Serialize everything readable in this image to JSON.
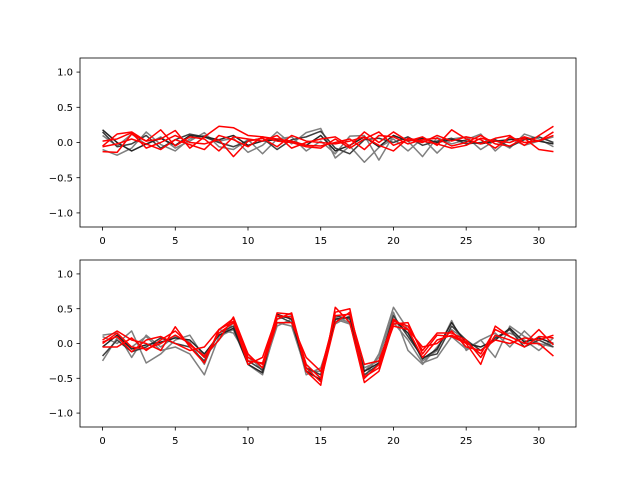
{
  "chart_data": [
    {
      "type": "line",
      "title": "",
      "xlabel": "",
      "ylabel": "",
      "xlim": [
        -1.55,
        32.55
      ],
      "ylim": [
        -1.2,
        1.2
      ],
      "x_ticks": [
        0,
        5,
        10,
        15,
        20,
        25,
        30
      ],
      "y_ticks": [
        -1.0,
        -0.5,
        0.0,
        0.5,
        1.0
      ],
      "y_tick_labels": [
        "−1.0",
        "−0.5",
        "0.0",
        "0.5",
        "1.0"
      ],
      "x": [
        0,
        1,
        2,
        3,
        4,
        5,
        6,
        7,
        8,
        9,
        10,
        11,
        12,
        13,
        14,
        15,
        16,
        17,
        18,
        19,
        20,
        21,
        22,
        23,
        24,
        25,
        26,
        27,
        28,
        29,
        30,
        31
      ],
      "series": [
        {
          "color": "#7f7f7f",
          "values": [
            -0.1,
            -0.18,
            -0.08,
            0.15,
            -0.03,
            -0.12,
            0.05,
            0.1,
            0.02,
            0.06,
            -0.14,
            -0.04,
            0.15,
            -0.02,
            0.14,
            0.2,
            -0.22,
            -0.05,
            -0.28,
            -0.07,
            0.05,
            -0.12,
            0.06,
            -0.15,
            0.05,
            0.08,
            -0.1,
            0.03,
            -0.08,
            0.12,
            0.05,
            -0.06
          ]
        },
        {
          "color": "#7f7f7f",
          "values": [
            0.1,
            -0.05,
            0.12,
            -0.03,
            0.08,
            -0.08,
            0.02,
            0.14,
            -0.06,
            -0.1,
            0.04,
            -0.16,
            0.05,
            0.08,
            -0.12,
            0.02,
            -0.16,
            0.09,
            0.1,
            -0.25,
            0.1,
            0.02,
            -0.2,
            0.07,
            -0.02,
            0.04,
            0.12,
            -0.12,
            0.06,
            -0.04,
            0.02,
            0.08
          ]
        },
        {
          "color": "#3f3f3f",
          "values": [
            0.15,
            -0.06,
            -0.02,
            0.1,
            -0.08,
            0.04,
            0.12,
            0.08,
            0.0,
            -0.06,
            0.02,
            0.06,
            -0.1,
            0.04,
            0.08,
            0.16,
            -0.08,
            -0.16,
            0.04,
            0.06,
            0.0,
            0.08,
            -0.04,
            0.02,
            0.06,
            -0.02,
            0.0,
            0.04,
            -0.06,
            0.04,
            0.08,
            0.0
          ]
        },
        {
          "color": "#262626",
          "values": [
            0.18,
            0.0,
            -0.12,
            -0.02,
            0.06,
            -0.04,
            0.1,
            0.08,
            0.04,
            0.1,
            -0.04,
            0.02,
            0.04,
            0.02,
            -0.04,
            0.1,
            -0.12,
            -0.04,
            0.08,
            -0.06,
            0.1,
            0.02,
            0.06,
            0.0,
            0.04,
            0.02,
            -0.02,
            0.02,
            0.04,
            0.06,
            0.02,
            -0.02
          ]
        },
        {
          "color": "#ff0000",
          "values": [
            -0.05,
            0.12,
            0.15,
            0.02,
            0.18,
            -0.05,
            0.08,
            0.05,
            -0.12,
            0.08,
            0.05,
            0.02,
            0.1,
            -0.08,
            0.0,
            0.05,
            0.08,
            -0.05,
            0.15,
            0.0,
            0.15,
            0.02,
            0.08,
            -0.04,
            0.18,
            0.05,
            -0.02,
            0.06,
            0.1,
            -0.04,
            0.1,
            0.23
          ]
        },
        {
          "color": "#ff0000",
          "values": [
            -0.13,
            -0.14,
            0.12,
            0.02,
            0.05,
            0.17,
            -0.08,
            0.08,
            0.23,
            0.21,
            0.1,
            0.08,
            0.05,
            0.02,
            -0.04,
            -0.05,
            0.0,
            0.05,
            -0.1,
            0.1,
            0.08,
            -0.02,
            0.04,
            0.06,
            -0.05,
            0.0,
            0.1,
            -0.02,
            -0.05,
            0.06,
            -0.1,
            -0.13
          ]
        },
        {
          "color": "#ff0000",
          "values": [
            -0.06,
            -0.02,
            0.05,
            -0.02,
            -0.1,
            0.04,
            -0.03,
            -0.1,
            0.1,
            0.04,
            -0.06,
            0.08,
            0.02,
            0.0,
            -0.06,
            -0.08,
            0.05,
            -0.08,
            0.05,
            0.15,
            -0.04,
            0.04,
            0.0,
            0.1,
            0.02,
            0.08,
            0.04,
            -0.08,
            0.08,
            0.0,
            0.02,
            0.15
          ]
        },
        {
          "color": "#ff0000",
          "values": [
            0.02,
            0.05,
            0.14,
            -0.08,
            0.0,
            0.1,
            0.0,
            -0.02,
            0.04,
            -0.2,
            0.02,
            0.06,
            -0.06,
            0.1,
            0.02,
            0.0,
            -0.02,
            0.02,
            0.08,
            -0.04,
            -0.12,
            0.06,
            0.02,
            -0.02,
            -0.08,
            -0.04,
            0.06,
            0.02,
            0.0,
            0.08,
            0.02,
            0.1
          ]
        }
      ]
    },
    {
      "type": "line",
      "title": "",
      "xlabel": "",
      "ylabel": "",
      "xlim": [
        -1.55,
        32.55
      ],
      "ylim": [
        -1.2,
        1.2
      ],
      "x_ticks": [
        0,
        5,
        10,
        15,
        20,
        25,
        30
      ],
      "y_ticks": [
        -1.0,
        -0.5,
        0.0,
        0.5,
        1.0
      ],
      "y_tick_labels": [
        "−1.0",
        "−0.5",
        "0.0",
        "0.5",
        "1.0"
      ],
      "x": [
        0,
        1,
        2,
        3,
        4,
        5,
        6,
        7,
        8,
        9,
        10,
        11,
        12,
        13,
        14,
        15,
        16,
        17,
        18,
        19,
        20,
        21,
        22,
        23,
        24,
        25,
        26,
        27,
        28,
        29,
        30,
        31
      ],
      "series": [
        {
          "color": "#7f7f7f",
          "values": [
            -0.25,
            0.08,
            -0.05,
            0.1,
            -0.1,
            -0.05,
            -0.15,
            -0.45,
            0.1,
            0.2,
            -0.3,
            -0.45,
            0.3,
            0.25,
            -0.4,
            -0.4,
            0.38,
            0.3,
            -0.5,
            -0.15,
            0.52,
            0.2,
            -0.25,
            -0.1,
            0.33,
            -0.1,
            0.05,
            -0.2,
            0.25,
            0.1,
            0.0,
            -0.05
          ]
        },
        {
          "color": "#7f7f7f",
          "values": [
            0.12,
            0.15,
            -0.2,
            0.12,
            -0.05,
            0.1,
            0.02,
            -0.3,
            0.2,
            0.15,
            -0.2,
            -0.35,
            0.35,
            0.4,
            -0.3,
            -0.5,
            0.35,
            0.28,
            -0.4,
            -0.2,
            0.45,
            -0.1,
            -0.3,
            -0.05,
            0.2,
            0.05,
            -0.2,
            0.1,
            0.15,
            0.05,
            -0.1,
            0.08
          ]
        },
        {
          "color": "#7f7f7f",
          "values": [
            0.1,
            0.0,
            0.18,
            -0.28,
            -0.15,
            0.05,
            0.12,
            -0.2,
            0.05,
            0.3,
            -0.15,
            -0.4,
            0.25,
            0.35,
            -0.45,
            -0.35,
            0.28,
            0.4,
            -0.35,
            -0.25,
            0.3,
            0.05,
            -0.28,
            -0.2,
            0.1,
            -0.08,
            0.05,
            0.15,
            -0.05,
            0.18,
            -0.02,
            0.0
          ]
        },
        {
          "color": "#3f3f3f",
          "values": [
            -0.18,
            0.05,
            -0.12,
            -0.05,
            0.08,
            0.0,
            -0.05,
            -0.25,
            0.15,
            0.25,
            -0.25,
            -0.38,
            0.4,
            0.3,
            -0.35,
            -0.45,
            0.4,
            0.35,
            -0.45,
            -0.3,
            0.4,
            0.1,
            -0.2,
            -0.15,
            0.25,
            0.05,
            -0.1,
            0.08,
            0.2,
            -0.05,
            0.05,
            -0.05
          ]
        },
        {
          "color": "#262626",
          "values": [
            -0.05,
            0.12,
            -0.08,
            -0.02,
            0.02,
            0.08,
            0.05,
            -0.15,
            0.12,
            0.22,
            -0.3,
            -0.42,
            0.42,
            0.35,
            -0.4,
            -0.52,
            0.35,
            0.38,
            -0.4,
            -0.28,
            0.35,
            0.15,
            -0.22,
            -0.08,
            0.3,
            0.0,
            -0.05,
            0.05,
            0.22,
            0.02,
            0.08,
            0.0
          ]
        },
        {
          "color": "#ff0000",
          "values": [
            0.05,
            0.18,
            0.05,
            0.0,
            -0.1,
            0.24,
            -0.05,
            -0.28,
            0.2,
            0.36,
            -0.2,
            -0.3,
            0.44,
            0.42,
            -0.4,
            -0.6,
            0.52,
            0.3,
            -0.56,
            -0.4,
            0.28,
            0.3,
            -0.15,
            0.12,
            0.1,
            0.0,
            -0.3,
            0.25,
            0.1,
            0.0,
            0.2,
            -0.02
          ]
        },
        {
          "color": "#ff0000",
          "values": [
            0.02,
            0.1,
            -0.12,
            0.05,
            0.1,
            0.0,
            -0.1,
            -0.05,
            0.2,
            0.32,
            -0.3,
            -0.2,
            0.4,
            0.38,
            -0.3,
            -0.5,
            0.45,
            0.5,
            -0.48,
            -0.35,
            0.35,
            0.2,
            -0.05,
            0.0,
            0.18,
            -0.05,
            -0.1,
            0.05,
            0.0,
            0.08,
            0.05,
            0.12
          ]
        },
        {
          "color": "#ff0000",
          "values": [
            -0.05,
            -0.05,
            0.08,
            -0.1,
            0.05,
            0.18,
            -0.02,
            -0.18,
            0.05,
            0.38,
            -0.15,
            -0.35,
            0.3,
            0.3,
            -0.2,
            -0.4,
            0.4,
            0.42,
            -0.3,
            -0.25,
            0.32,
            0.25,
            -0.1,
            0.15,
            0.15,
            0.05,
            -0.2,
            0.12,
            0.05,
            -0.05,
            0.1,
            0.08
          ]
        },
        {
          "color": "#ff0000",
          "values": [
            0.0,
            0.15,
            -0.05,
            -0.08,
            0.0,
            0.12,
            0.0,
            -0.2,
            0.15,
            0.3,
            -0.25,
            -0.28,
            0.35,
            0.44,
            -0.35,
            -0.55,
            0.3,
            0.45,
            -0.5,
            -0.3,
            0.25,
            0.2,
            -0.2,
            0.05,
            0.12,
            0.02,
            -0.15,
            0.2,
            0.1,
            0.0,
            0.0,
            -0.18
          ]
        }
      ]
    }
  ]
}
